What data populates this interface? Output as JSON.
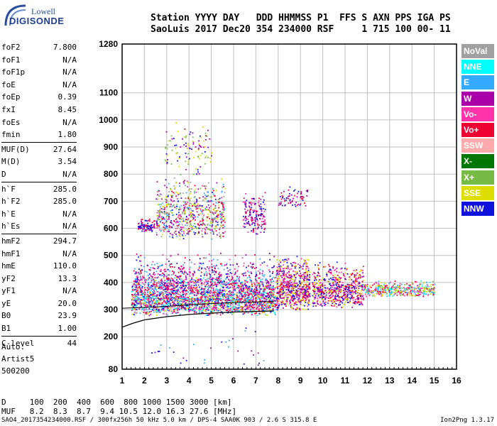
{
  "logo": {
    "brand_top": "Lowell",
    "brand_bottom": "DIGISONDE"
  },
  "header": {
    "line1": "Station YYYY DAY   DDD HHMMSS P1  FFS S AXN PPS IGA PS",
    "line2": "SaoLuis 2017 Dec20 354 234000 RSF     1 715 100 00- 11"
  },
  "params": [
    {
      "name": "foF2",
      "value": "7.800"
    },
    {
      "name": "foF1",
      "value": "N/A"
    },
    {
      "name": "foF1p",
      "value": "N/A"
    },
    {
      "name": "foE",
      "value": "N/A"
    },
    {
      "name": "foEp",
      "value": "0.39"
    },
    {
      "name": "fxI",
      "value": "8.45"
    },
    {
      "name": "foEs",
      "value": "N/A"
    },
    {
      "name": "fmin",
      "value": "1.80"
    },
    {
      "name": "MUF(D)",
      "value": "27.64",
      "sep": true
    },
    {
      "name": "M(D)",
      "value": "3.54"
    },
    {
      "name": "D",
      "value": "N/A"
    },
    {
      "name": "h`F",
      "value": "285.0",
      "sep": true
    },
    {
      "name": "h`F2",
      "value": "285.0"
    },
    {
      "name": "h`E",
      "value": "N/A"
    },
    {
      "name": "h`Es",
      "value": "N/A"
    },
    {
      "name": "hmF2",
      "value": "294.7",
      "sep": true
    },
    {
      "name": "hmF1",
      "value": "N/A"
    },
    {
      "name": "hmE",
      "value": "110.0"
    },
    {
      "name": "yF2",
      "value": "13.3"
    },
    {
      "name": "yF1",
      "value": "N/A"
    },
    {
      "name": "yE",
      "value": "20.0"
    },
    {
      "name": "B0",
      "value": "23.9"
    },
    {
      "name": "B1",
      "value": "1.00"
    },
    {
      "name": "C-level",
      "value": "44",
      "sep": true
    }
  ],
  "notes": [
    "Auto:",
    "Artist5",
    "500200"
  ],
  "legend": [
    {
      "label": "NoVal",
      "color": "#a0a0a0"
    },
    {
      "label": "NNE",
      "color": "#00ffff"
    },
    {
      "label": "E",
      "color": "#33aaff"
    },
    {
      "label": "W",
      "color": "#aa00aa"
    },
    {
      "label": "Vo-",
      "color": "#ff33aa"
    },
    {
      "label": "Vo+",
      "color": "#ee0033"
    },
    {
      "label": "SSW",
      "color": "#ffaaaa"
    },
    {
      "label": "X-",
      "color": "#007700"
    },
    {
      "label": "X+",
      "color": "#77bb44"
    },
    {
      "label": "SSE",
      "color": "#dddd00"
    },
    {
      "label": "NNW",
      "color": "#1111dd"
    }
  ],
  "chart_data": {
    "type": "scatter",
    "title": "",
    "xlabel": "",
    "ylabel": "",
    "x_ticks": [
      1,
      2,
      3,
      4,
      5,
      6,
      7,
      8,
      9,
      10,
      11,
      12,
      13,
      14,
      15,
      16
    ],
    "y_ticks": [
      80,
      200,
      300,
      400,
      500,
      600,
      700,
      800,
      900,
      1000,
      1100,
      1280
    ],
    "xlim": [
      1,
      16
    ],
    "ylim": [
      80,
      1280
    ],
    "grid": true,
    "trace_curve": [
      [
        1.0,
        235
      ],
      [
        1.5,
        250
      ],
      [
        2,
        262
      ],
      [
        3,
        274
      ],
      [
        4,
        282
      ],
      [
        5,
        287
      ],
      [
        6,
        291
      ],
      [
        7,
        293
      ],
      [
        7.8,
        295
      ]
    ],
    "trace_curve_upper": [
      [
        1.0,
        305
      ],
      [
        2,
        308
      ],
      [
        3,
        312
      ],
      [
        4,
        318
      ],
      [
        5,
        322
      ],
      [
        6,
        326
      ],
      [
        7,
        328
      ],
      [
        7.8,
        330
      ]
    ],
    "clusters": [
      {
        "x": [
          1.4,
          7.9
        ],
        "y": [
          280,
          430
        ],
        "n": 2200,
        "colors": [
          "#ee0033",
          "#ff33aa",
          "#aa00aa",
          "#1111dd",
          "#33aaff",
          "#dddd00",
          "#00ffff",
          "#a0a0a0"
        ]
      },
      {
        "x": [
          1.5,
          7.8
        ],
        "y": [
          330,
          520
        ],
        "n": 800,
        "colors": [
          "#aa00aa",
          "#ff33aa",
          "#1111dd",
          "#33aaff",
          "#ee0033"
        ]
      },
      {
        "x": [
          7.9,
          9.4
        ],
        "y": [
          300,
          510
        ],
        "n": 650,
        "colors": [
          "#ee0033",
          "#ff33aa",
          "#aa00aa",
          "#1111dd",
          "#dddd00"
        ]
      },
      {
        "x": [
          9.5,
          11.8
        ],
        "y": [
          310,
          480
        ],
        "n": 650,
        "colors": [
          "#ee0033",
          "#ff33aa",
          "#aa00aa",
          "#dddd00",
          "#1111dd"
        ]
      },
      {
        "x": [
          11.8,
          15.0
        ],
        "y": [
          350,
          410
        ],
        "n": 420,
        "colors": [
          "#00ffff",
          "#33aaff",
          "#dddd00",
          "#77bb44",
          "#ee0033",
          "#ff33aa"
        ]
      },
      {
        "x": [
          2.5,
          5.6
        ],
        "y": [
          560,
          800
        ],
        "n": 700,
        "colors": [
          "#dddd00",
          "#aa00aa",
          "#1111dd",
          "#ee0033",
          "#ff33aa",
          "#33aaff",
          "#a0a0a0",
          "#77bb44"
        ]
      },
      {
        "x": [
          1.7,
          2.5
        ],
        "y": [
          590,
          640
        ],
        "n": 90,
        "colors": [
          "#ee0033",
          "#aa00aa",
          "#1111dd"
        ]
      },
      {
        "x": [
          6.4,
          7.4
        ],
        "y": [
          580,
          750
        ],
        "n": 170,
        "colors": [
          "#aa00aa",
          "#ee0033",
          "#ff33aa",
          "#1111dd"
        ]
      },
      {
        "x": [
          8.0,
          9.3
        ],
        "y": [
          680,
          760
        ],
        "n": 70,
        "colors": [
          "#aa00aa",
          "#ee0033",
          "#1111dd"
        ]
      },
      {
        "x": [
          2.9,
          5.0
        ],
        "y": [
          800,
          1000
        ],
        "n": 110,
        "colors": [
          "#dddd00",
          "#aa00aa",
          "#1111dd",
          "#77bb44"
        ]
      },
      {
        "x": [
          2.0,
          7.5
        ],
        "y": [
          80,
          250
        ],
        "n": 30,
        "colors": [
          "#1111dd",
          "#aa00aa",
          "#33aaff"
        ]
      }
    ]
  },
  "footer": {
    "dist_line": "D     100  200  400  600  800 1000 1500 3000 [km]",
    "muf_line": "MUF   8.2  8.3  8.7  9.4 10.5 12.0 16.3 27.6 [MHz]",
    "file_line": "SAO4_2017354234000.RSF / 300fx256h 50 kHz 5.0 km / DPS-4 SAA0K 903 / 2.6 S 315.8 E",
    "version": "Ion2Png 1.3.17"
  }
}
